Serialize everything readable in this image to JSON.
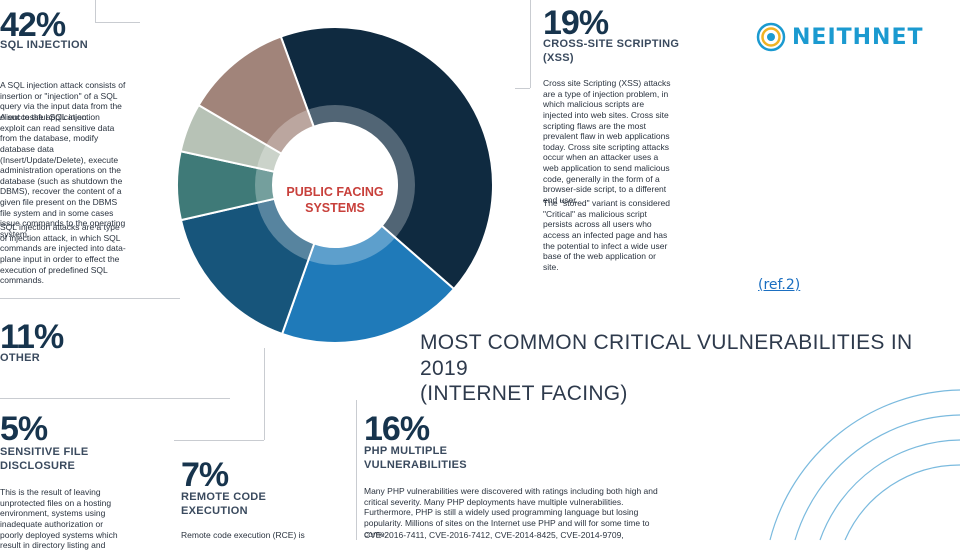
{
  "brand": {
    "name": "NEITHNET",
    "color": "#1b9ad0"
  },
  "reference_link": "(ref.2)",
  "headline": {
    "line1": "MOST COMMON CRITICAL VULNERABILITIES IN 2019",
    "line2": "(INTERNET FACING)"
  },
  "center_label": {
    "line1": "PUBLIC FACING",
    "line2": "SYSTEMS",
    "color": "#c8403b"
  },
  "chart_data": {
    "type": "pie",
    "categories": [
      "SQL INJECTION",
      "CROSS-SITE SCRIPTING (XSS)",
      "PHP MULTIPLE VULNERABILITIES",
      "REMOTE CODE EXECUTION",
      "SENSITIVE FILE DISCLOSURE",
      "OTHER"
    ],
    "values": [
      42,
      19,
      16,
      7,
      5,
      11
    ],
    "colors": [
      "#0f2a40",
      "#1f7ab9",
      "#17557b",
      "#3f7a78",
      "#b7c2b6",
      "#a1847a"
    ]
  },
  "callouts": {
    "sql": {
      "pct": "42%",
      "title": "SQL INJECTION",
      "p1": "A SQL injection attack consists of insertion or \"injection\" of a SQL query via the input data from the client to the application.",
      "p2": "A successful SQL injection exploit can read sensitive data from the database, modify database data (Insert/Update/Delete), execute administration operations on the database (such as shutdown the DBMS), recover the content of a given file present on the DBMS file system and in some cases issue commands to the operating system.",
      "p3": "SQL injection attacks are a type of injection attack, in which SQL commands are injected into data-plane input in order to effect the execution of predefined SQL commands."
    },
    "xss": {
      "pct": "19%",
      "title1": "CROSS-SITE SCRIPTING",
      "title2": "(XSS)",
      "p1": "Cross site Scripting (XSS) attacks are a type of injection problem, in which malicious scripts are injected into web sites. Cross site scripting flaws are the most prevalent flaw in web applications today. Cross site scripting attacks occur when an attacker uses a web application to send malicious code, generally in the form of a browser-side script, to a different end user.",
      "p2": "The \"stored\" variant is considered \"Critical\" as malicious script persists across all users who access an infected page and has the potential to infect a wide user base of the web application or site."
    },
    "other": {
      "pct": "11%",
      "title": "OTHER"
    },
    "sensitive": {
      "pct": "5%",
      "title1": "SENSITIVE FILE",
      "title2": "DISCLOSURE",
      "p1": "This is the result of leaving unprotected files on a hosting environment, systems using inadequate authorization or poorly deployed systems which result in directory listing and"
    },
    "rce": {
      "pct": "7%",
      "title1": "REMOTE CODE",
      "title2": "EXECUTION",
      "p1": "Remote code execution (RCE) is"
    },
    "php": {
      "pct": "16%",
      "title1": "PHP MULTIPLE",
      "title2": "VULNERABILITIES",
      "p1": "Many PHP vulnerabilities were discovered with ratings including both high and critical severity. Many PHP deployments have multiple vulnerabilities. Furthermore, PHP is still a widely used programming language but losing popularity. Millions of sites on the Internet use PHP and will for some time to come.",
      "p2": "CVE-2016-7411, CVE-2016-7412, CVE-2014-8425, CVE-2014-9709,"
    }
  }
}
